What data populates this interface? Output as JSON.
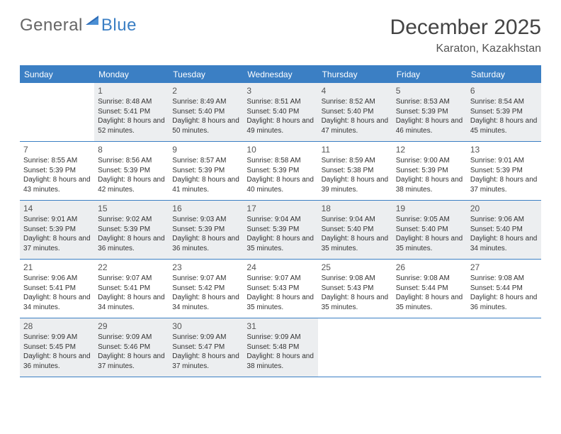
{
  "logo": {
    "text1": "General",
    "text2": "Blue"
  },
  "title": "December 2025",
  "location": "Karaton, Kazakhstan",
  "colors": {
    "accent": "#3b7fc4",
    "shaded": "#eceef0",
    "text": "#333333",
    "muted": "#666666"
  },
  "dayNames": [
    "Sunday",
    "Monday",
    "Tuesday",
    "Wednesday",
    "Thursday",
    "Friday",
    "Saturday"
  ],
  "weeks": [
    [
      {
        "day": "",
        "sunrise": "",
        "sunset": "",
        "daylight": "",
        "shaded": false
      },
      {
        "day": "1",
        "sunrise": "Sunrise: 8:48 AM",
        "sunset": "Sunset: 5:41 PM",
        "daylight": "Daylight: 8 hours and 52 minutes.",
        "shaded": true
      },
      {
        "day": "2",
        "sunrise": "Sunrise: 8:49 AM",
        "sunset": "Sunset: 5:40 PM",
        "daylight": "Daylight: 8 hours and 50 minutes.",
        "shaded": true
      },
      {
        "day": "3",
        "sunrise": "Sunrise: 8:51 AM",
        "sunset": "Sunset: 5:40 PM",
        "daylight": "Daylight: 8 hours and 49 minutes.",
        "shaded": true
      },
      {
        "day": "4",
        "sunrise": "Sunrise: 8:52 AM",
        "sunset": "Sunset: 5:40 PM",
        "daylight": "Daylight: 8 hours and 47 minutes.",
        "shaded": true
      },
      {
        "day": "5",
        "sunrise": "Sunrise: 8:53 AM",
        "sunset": "Sunset: 5:39 PM",
        "daylight": "Daylight: 8 hours and 46 minutes.",
        "shaded": true
      },
      {
        "day": "6",
        "sunrise": "Sunrise: 8:54 AM",
        "sunset": "Sunset: 5:39 PM",
        "daylight": "Daylight: 8 hours and 45 minutes.",
        "shaded": true
      }
    ],
    [
      {
        "day": "7",
        "sunrise": "Sunrise: 8:55 AM",
        "sunset": "Sunset: 5:39 PM",
        "daylight": "Daylight: 8 hours and 43 minutes.",
        "shaded": false
      },
      {
        "day": "8",
        "sunrise": "Sunrise: 8:56 AM",
        "sunset": "Sunset: 5:39 PM",
        "daylight": "Daylight: 8 hours and 42 minutes.",
        "shaded": false
      },
      {
        "day": "9",
        "sunrise": "Sunrise: 8:57 AM",
        "sunset": "Sunset: 5:39 PM",
        "daylight": "Daylight: 8 hours and 41 minutes.",
        "shaded": false
      },
      {
        "day": "10",
        "sunrise": "Sunrise: 8:58 AM",
        "sunset": "Sunset: 5:39 PM",
        "daylight": "Daylight: 8 hours and 40 minutes.",
        "shaded": false
      },
      {
        "day": "11",
        "sunrise": "Sunrise: 8:59 AM",
        "sunset": "Sunset: 5:38 PM",
        "daylight": "Daylight: 8 hours and 39 minutes.",
        "shaded": false
      },
      {
        "day": "12",
        "sunrise": "Sunrise: 9:00 AM",
        "sunset": "Sunset: 5:39 PM",
        "daylight": "Daylight: 8 hours and 38 minutes.",
        "shaded": false
      },
      {
        "day": "13",
        "sunrise": "Sunrise: 9:01 AM",
        "sunset": "Sunset: 5:39 PM",
        "daylight": "Daylight: 8 hours and 37 minutes.",
        "shaded": false
      }
    ],
    [
      {
        "day": "14",
        "sunrise": "Sunrise: 9:01 AM",
        "sunset": "Sunset: 5:39 PM",
        "daylight": "Daylight: 8 hours and 37 minutes.",
        "shaded": true
      },
      {
        "day": "15",
        "sunrise": "Sunrise: 9:02 AM",
        "sunset": "Sunset: 5:39 PM",
        "daylight": "Daylight: 8 hours and 36 minutes.",
        "shaded": true
      },
      {
        "day": "16",
        "sunrise": "Sunrise: 9:03 AM",
        "sunset": "Sunset: 5:39 PM",
        "daylight": "Daylight: 8 hours and 36 minutes.",
        "shaded": true
      },
      {
        "day": "17",
        "sunrise": "Sunrise: 9:04 AM",
        "sunset": "Sunset: 5:39 PM",
        "daylight": "Daylight: 8 hours and 35 minutes.",
        "shaded": true
      },
      {
        "day": "18",
        "sunrise": "Sunrise: 9:04 AM",
        "sunset": "Sunset: 5:40 PM",
        "daylight": "Daylight: 8 hours and 35 minutes.",
        "shaded": true
      },
      {
        "day": "19",
        "sunrise": "Sunrise: 9:05 AM",
        "sunset": "Sunset: 5:40 PM",
        "daylight": "Daylight: 8 hours and 35 minutes.",
        "shaded": true
      },
      {
        "day": "20",
        "sunrise": "Sunrise: 9:06 AM",
        "sunset": "Sunset: 5:40 PM",
        "daylight": "Daylight: 8 hours and 34 minutes.",
        "shaded": true
      }
    ],
    [
      {
        "day": "21",
        "sunrise": "Sunrise: 9:06 AM",
        "sunset": "Sunset: 5:41 PM",
        "daylight": "Daylight: 8 hours and 34 minutes.",
        "shaded": false
      },
      {
        "day": "22",
        "sunrise": "Sunrise: 9:07 AM",
        "sunset": "Sunset: 5:41 PM",
        "daylight": "Daylight: 8 hours and 34 minutes.",
        "shaded": false
      },
      {
        "day": "23",
        "sunrise": "Sunrise: 9:07 AM",
        "sunset": "Sunset: 5:42 PM",
        "daylight": "Daylight: 8 hours and 34 minutes.",
        "shaded": false
      },
      {
        "day": "24",
        "sunrise": "Sunrise: 9:07 AM",
        "sunset": "Sunset: 5:43 PM",
        "daylight": "Daylight: 8 hours and 35 minutes.",
        "shaded": false
      },
      {
        "day": "25",
        "sunrise": "Sunrise: 9:08 AM",
        "sunset": "Sunset: 5:43 PM",
        "daylight": "Daylight: 8 hours and 35 minutes.",
        "shaded": false
      },
      {
        "day": "26",
        "sunrise": "Sunrise: 9:08 AM",
        "sunset": "Sunset: 5:44 PM",
        "daylight": "Daylight: 8 hours and 35 minutes.",
        "shaded": false
      },
      {
        "day": "27",
        "sunrise": "Sunrise: 9:08 AM",
        "sunset": "Sunset: 5:44 PM",
        "daylight": "Daylight: 8 hours and 36 minutes.",
        "shaded": false
      }
    ],
    [
      {
        "day": "28",
        "sunrise": "Sunrise: 9:09 AM",
        "sunset": "Sunset: 5:45 PM",
        "daylight": "Daylight: 8 hours and 36 minutes.",
        "shaded": true
      },
      {
        "day": "29",
        "sunrise": "Sunrise: 9:09 AM",
        "sunset": "Sunset: 5:46 PM",
        "daylight": "Daylight: 8 hours and 37 minutes.",
        "shaded": true
      },
      {
        "day": "30",
        "sunrise": "Sunrise: 9:09 AM",
        "sunset": "Sunset: 5:47 PM",
        "daylight": "Daylight: 8 hours and 37 minutes.",
        "shaded": true
      },
      {
        "day": "31",
        "sunrise": "Sunrise: 9:09 AM",
        "sunset": "Sunset: 5:48 PM",
        "daylight": "Daylight: 8 hours and 38 minutes.",
        "shaded": true
      },
      {
        "day": "",
        "sunrise": "",
        "sunset": "",
        "daylight": "",
        "shaded": false
      },
      {
        "day": "",
        "sunrise": "",
        "sunset": "",
        "daylight": "",
        "shaded": false
      },
      {
        "day": "",
        "sunrise": "",
        "sunset": "",
        "daylight": "",
        "shaded": false
      }
    ]
  ]
}
